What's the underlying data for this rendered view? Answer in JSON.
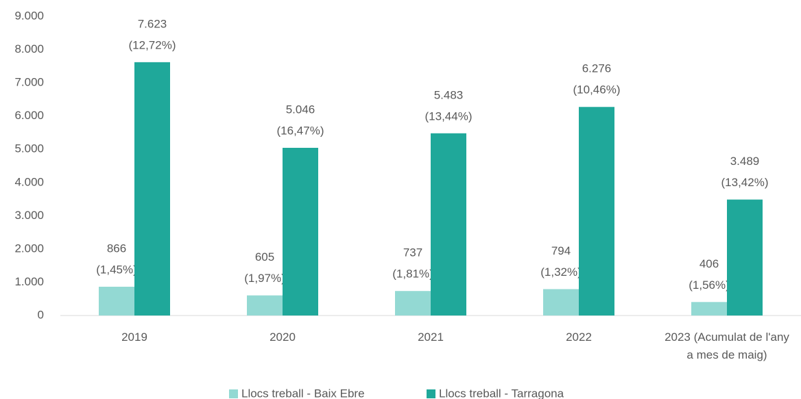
{
  "chart_data": {
    "type": "bar",
    "categories": [
      "2019",
      "2020",
      "2021",
      "2022",
      "2023 (Acumulat de l'any a mes de maig)"
    ],
    "series": [
      {
        "name": "Llocs treball - Baix Ebre",
        "color": "#93d9d3",
        "values": [
          866,
          605,
          737,
          794,
          406
        ],
        "value_labels": [
          "866",
          "605",
          "737",
          "794",
          "406"
        ],
        "share_labels": [
          "(1,45%)",
          "(1,97%)",
          "(1,81%)",
          "(1,32%)",
          "(1,56%)"
        ]
      },
      {
        "name": "Llocs treball - Tarragona",
        "color": "#1fa89a",
        "values": [
          7623,
          5046,
          5483,
          6276,
          3489
        ],
        "value_labels": [
          "7.623",
          "5.046",
          "5.483",
          "6.276",
          "3.489"
        ],
        "share_labels": [
          "(12,72%)",
          "(16,47%)",
          "(13,44%)",
          "(10,46%)",
          "(13,42%)"
        ]
      }
    ],
    "ylim": [
      0,
      9000
    ],
    "yticks": [
      0,
      {
        "value": 1000,
        "label": "1.000"
      },
      {
        "value": 2000,
        "label": "2.000"
      },
      {
        "value": 3000,
        "label": "3.000"
      },
      {
        "value": 4000,
        "label": "4.000"
      },
      {
        "value": 5000,
        "label": "5.000"
      },
      {
        "value": 6000,
        "label": "6.000"
      },
      {
        "value": 7000,
        "label": "7.000"
      },
      {
        "value": 8000,
        "label": "8.000"
      },
      {
        "value": 9000,
        "label": "9.000"
      }
    ],
    "grid": false,
    "legend": "bottom"
  }
}
